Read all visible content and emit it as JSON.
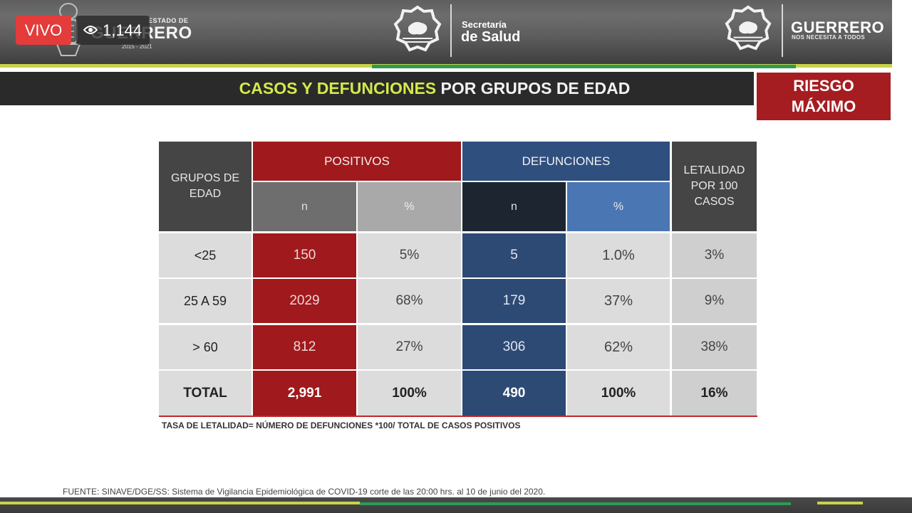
{
  "overlay": {
    "live_label": "VIVO",
    "viewer_count": "1,144"
  },
  "header": {
    "estado_label": "ESTADO DE",
    "left_brand": "GUERRERO",
    "left_years": "2015 - 2021",
    "secretaria": "Secretaría",
    "salud": "de Salud",
    "right_brand": "GUERRERO",
    "right_tagline": "NOS NECESITA A TODOS"
  },
  "title": {
    "part1": "CASOS Y DEFUNCIONES",
    "part2": " POR GRUPOS DE EDAD"
  },
  "risk": {
    "line1": "RIESGO",
    "line2": "MÁXIMO"
  },
  "table": {
    "headers": {
      "age": "GRUPOS DE EDAD",
      "positivos": "POSITIVOS",
      "defunciones": "DEFUNCIONES",
      "letalidad": "LETALIDAD POR 100 CASOS",
      "n": "n",
      "pct": "%"
    },
    "rows": [
      {
        "grupo": "<25",
        "pos_n": "150",
        "pos_pct": "5%",
        "def_n": "5",
        "def_pct": "1.0%",
        "letalidad": "3%"
      },
      {
        "grupo": "25 A 59",
        "pos_n": "2029",
        "pos_pct": "68%",
        "def_n": "179",
        "def_pct": "37%",
        "letalidad": "9%"
      },
      {
        "grupo": "> 60",
        "pos_n": "812",
        "pos_pct": "27%",
        "def_n": "306",
        "def_pct": "62%",
        "letalidad": "38%"
      },
      {
        "grupo": "TOTAL",
        "pos_n": "2,991",
        "pos_pct": "100%",
        "def_n": "490",
        "def_pct": "100%",
        "letalidad": "16%"
      }
    ]
  },
  "note": "TASA DE LETALIDAD= NÚMERO DE DEFUNCIONES *100/ TOTAL DE CASOS POSITIVOS",
  "source": "FUENTE: SINAVE/DGE/SS: Sistema de Vigilancia Epidemiológica de COVID-19 corte de las 20:00 hrs. al 10 de junio del 2020.",
  "colors": {
    "positivos": "#a0191c",
    "defunciones": "#2f4f7e",
    "title_accent": "#d6e84a",
    "risk_badge": "#a51d21"
  }
}
